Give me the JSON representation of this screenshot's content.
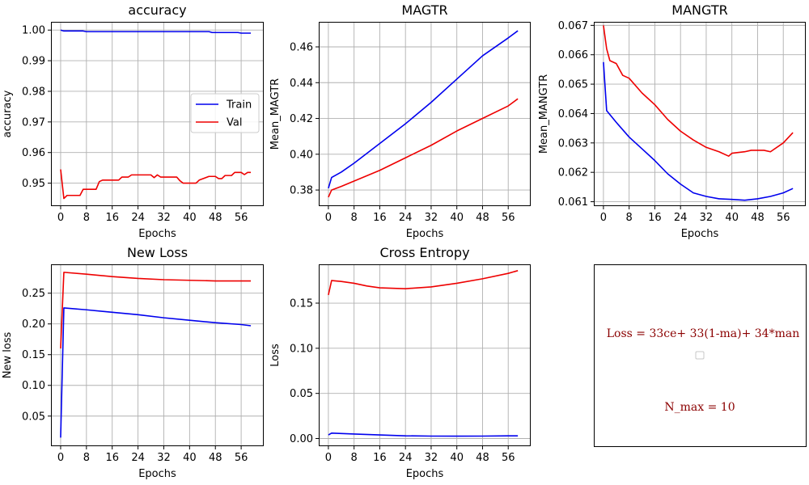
{
  "colors": {
    "train": "#0000ee",
    "val": "#ee0000",
    "grid": "#b0b0b0",
    "frame": "#000000"
  },
  "chart_data": [
    {
      "type": "line",
      "title": "accuracy",
      "xlabel": "Epochs",
      "ylabel": "accuracy",
      "xlim": [
        -3,
        63
      ],
      "ylim": [
        0.9425,
        1.0027
      ],
      "xticks": [
        0,
        8,
        16,
        24,
        32,
        40,
        48,
        56
      ],
      "yticks": [
        0.95,
        0.96,
        0.97,
        0.98,
        0.99,
        1.0
      ],
      "ytick_labels": [
        "0.95",
        "0.96",
        "0.97",
        "0.98",
        "0.99",
        "1.00"
      ],
      "grid": true,
      "legend": {
        "placement": "center-right",
        "entries": [
          "Train",
          "Val"
        ]
      },
      "series": [
        {
          "name": "Train",
          "color": "train",
          "points": [
            [
              0,
              1.0
            ],
            [
              1,
              0.9997
            ],
            [
              7,
              0.9997
            ],
            [
              8,
              0.9995
            ],
            [
              46,
              0.9995
            ],
            [
              47,
              0.9992
            ],
            [
              55,
              0.9992
            ],
            [
              56,
              0.999
            ],
            [
              59,
              0.999
            ]
          ]
        },
        {
          "name": "Val",
          "color": "val",
          "points": [
            [
              0,
              0.9545
            ],
            [
              1,
              0.945
            ],
            [
              2,
              0.946
            ],
            [
              6,
              0.946
            ],
            [
              7,
              0.948
            ],
            [
              11,
              0.948
            ],
            [
              12,
              0.9505
            ],
            [
              13,
              0.951
            ],
            [
              18,
              0.951
            ],
            [
              19,
              0.952
            ],
            [
              21,
              0.952
            ],
            [
              22,
              0.9527
            ],
            [
              28,
              0.9527
            ],
            [
              29,
              0.9518
            ],
            [
              30,
              0.9527
            ],
            [
              31,
              0.952
            ],
            [
              36,
              0.952
            ],
            [
              37,
              0.9508
            ],
            [
              38,
              0.95
            ],
            [
              42,
              0.95
            ],
            [
              43,
              0.951
            ],
            [
              46,
              0.9522
            ],
            [
              48,
              0.9522
            ],
            [
              49,
              0.9515
            ],
            [
              50,
              0.9515
            ],
            [
              51,
              0.9525
            ],
            [
              53,
              0.9525
            ],
            [
              54,
              0.9535
            ],
            [
              56,
              0.9535
            ],
            [
              57,
              0.9528
            ],
            [
              58,
              0.9535
            ],
            [
              59,
              0.9535
            ]
          ]
        }
      ]
    },
    {
      "type": "line",
      "title": "MAGTR",
      "xlabel": "Epochs",
      "ylabel": "Mean_MAGTR",
      "xlim": [
        -3,
        63
      ],
      "ylim": [
        0.371,
        0.474
      ],
      "xticks": [
        0,
        8,
        16,
        24,
        32,
        40,
        48,
        56
      ],
      "yticks": [
        0.38,
        0.4,
        0.42,
        0.44,
        0.46
      ],
      "ytick_labels": [
        "0.38",
        "0.40",
        "0.42",
        "0.44",
        "0.46"
      ],
      "grid": true,
      "series": [
        {
          "name": "",
          "color": "train",
          "points": [
            [
              0,
              0.381
            ],
            [
              1,
              0.387
            ],
            [
              4,
              0.39
            ],
            [
              8,
              0.395
            ],
            [
              16,
              0.406
            ],
            [
              24,
              0.417
            ],
            [
              32,
              0.429
            ],
            [
              40,
              0.442
            ],
            [
              48,
              0.455
            ],
            [
              56,
              0.465
            ],
            [
              59,
              0.469
            ]
          ]
        },
        {
          "name": "",
          "color": "val",
          "points": [
            [
              0,
              0.376
            ],
            [
              1,
              0.38
            ],
            [
              4,
              0.382
            ],
            [
              8,
              0.385
            ],
            [
              16,
              0.391
            ],
            [
              24,
              0.398
            ],
            [
              32,
              0.405
            ],
            [
              40,
              0.413
            ],
            [
              48,
              0.42
            ],
            [
              56,
              0.427
            ],
            [
              59,
              0.431
            ]
          ]
        }
      ]
    },
    {
      "type": "line",
      "title": "MANGTR",
      "xlabel": "Epochs",
      "ylabel": "Mean_MANGTR",
      "xlim": [
        -3,
        63
      ],
      "ylim": [
        0.06085,
        0.06712
      ],
      "xticks": [
        0,
        8,
        16,
        24,
        32,
        40,
        48,
        56
      ],
      "yticks": [
        0.061,
        0.062,
        0.063,
        0.064,
        0.065,
        0.066,
        0.067
      ],
      "ytick_labels": [
        "0.061",
        "0.062",
        "0.063",
        "0.064",
        "0.065",
        "0.066",
        "0.067"
      ],
      "grid": true,
      "series": [
        {
          "name": "",
          "color": "train",
          "points": [
            [
              0,
              0.06575
            ],
            [
              1,
              0.0641
            ],
            [
              4,
              0.0637
            ],
            [
              8,
              0.0632
            ],
            [
              12,
              0.0628
            ],
            [
              16,
              0.0624
            ],
            [
              20,
              0.06195
            ],
            [
              24,
              0.0616
            ],
            [
              28,
              0.0613
            ],
            [
              32,
              0.06118
            ],
            [
              36,
              0.0611
            ],
            [
              40,
              0.06108
            ],
            [
              44,
              0.06105
            ],
            [
              48,
              0.0611
            ],
            [
              52,
              0.06118
            ],
            [
              56,
              0.0613
            ],
            [
              59,
              0.06145
            ]
          ]
        },
        {
          "name": "",
          "color": "val",
          "points": [
            [
              0,
              0.067
            ],
            [
              1,
              0.0662
            ],
            [
              2,
              0.0658
            ],
            [
              4,
              0.0657
            ],
            [
              6,
              0.0653
            ],
            [
              8,
              0.0652
            ],
            [
              12,
              0.0647
            ],
            [
              16,
              0.0643
            ],
            [
              20,
              0.0638
            ],
            [
              24,
              0.0634
            ],
            [
              28,
              0.0631
            ],
            [
              32,
              0.06285
            ],
            [
              36,
              0.0627
            ],
            [
              39,
              0.06255
            ],
            [
              40,
              0.06265
            ],
            [
              44,
              0.0627
            ],
            [
              46,
              0.06275
            ],
            [
              50,
              0.06275
            ],
            [
              52,
              0.0627
            ],
            [
              56,
              0.063
            ],
            [
              59,
              0.06335
            ]
          ]
        }
      ]
    },
    {
      "type": "line",
      "title": "New Loss",
      "xlabel": "Epochs",
      "ylabel": "New loss",
      "xlim": [
        -3,
        63
      ],
      "ylim": [
        0.001,
        0.297
      ],
      "xticks": [
        0,
        8,
        16,
        24,
        32,
        40,
        48,
        56
      ],
      "yticks": [
        0.05,
        0.1,
        0.15,
        0.2,
        0.25
      ],
      "ytick_labels": [
        "0.05",
        "0.10",
        "0.15",
        "0.20",
        "0.25"
      ],
      "grid": true,
      "series": [
        {
          "name": "",
          "color": "train",
          "points": [
            [
              0,
              0.015
            ],
            [
              1,
              0.226
            ],
            [
              8,
              0.223
            ],
            [
              16,
              0.219
            ],
            [
              24,
              0.215
            ],
            [
              32,
              0.21
            ],
            [
              40,
              0.206
            ],
            [
              48,
              0.202
            ],
            [
              56,
              0.199
            ],
            [
              59,
              0.197
            ]
          ]
        },
        {
          "name": "",
          "color": "val",
          "points": [
            [
              0,
              0.16
            ],
            [
              1,
              0.284
            ],
            [
              8,
              0.281
            ],
            [
              16,
              0.277
            ],
            [
              24,
              0.274
            ],
            [
              32,
              0.272
            ],
            [
              40,
              0.271
            ],
            [
              48,
              0.27
            ],
            [
              56,
              0.27
            ],
            [
              59,
              0.27
            ]
          ]
        }
      ]
    },
    {
      "type": "line",
      "title": "Cross Entropy",
      "xlabel": "Epochs",
      "ylabel": "Loss",
      "xlim": [
        -3,
        63
      ],
      "ylim": [
        -0.0085,
        0.193
      ],
      "xticks": [
        0,
        8,
        16,
        24,
        32,
        40,
        48,
        56
      ],
      "yticks": [
        0.0,
        0.05,
        0.1,
        0.15
      ],
      "ytick_labels": [
        "0.00",
        "0.05",
        "0.10",
        "0.15"
      ],
      "grid": true,
      "series": [
        {
          "name": "",
          "color": "train",
          "points": [
            [
              0,
              0.004
            ],
            [
              1,
              0.006
            ],
            [
              8,
              0.005
            ],
            [
              16,
              0.004
            ],
            [
              24,
              0.003
            ],
            [
              32,
              0.0027
            ],
            [
              40,
              0.0026
            ],
            [
              48,
              0.0027
            ],
            [
              56,
              0.003
            ],
            [
              59,
              0.003
            ]
          ]
        },
        {
          "name": "",
          "color": "val",
          "points": [
            [
              0,
              0.159
            ],
            [
              1,
              0.175
            ],
            [
              4,
              0.174
            ],
            [
              8,
              0.172
            ],
            [
              12,
              0.169
            ],
            [
              16,
              0.167
            ],
            [
              24,
              0.166
            ],
            [
              32,
              0.168
            ],
            [
              40,
              0.172
            ],
            [
              48,
              0.177
            ],
            [
              56,
              0.183
            ],
            [
              59,
              0.186
            ]
          ]
        }
      ]
    }
  ],
  "note_panel": {
    "formula": "Loss = 33ce+ 33(1-ma)+ 34*man",
    "nmax": "N_max = 10"
  }
}
